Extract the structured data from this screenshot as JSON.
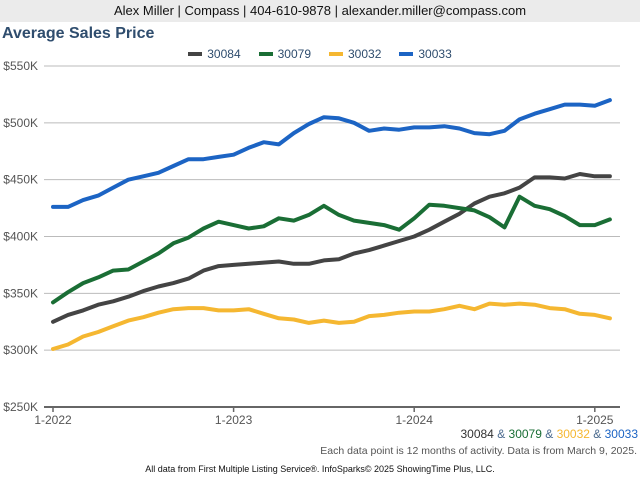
{
  "header": {
    "contact": "Alex Miller | Compass | 404-610-9878 | alexander.miller@compass.com"
  },
  "chart_data": {
    "type": "line",
    "title": "Average Sales Price",
    "xlabel": "",
    "ylabel": "",
    "ylim": [
      250000,
      550000
    ],
    "yticks": [
      250000,
      300000,
      350000,
      400000,
      450000,
      500000,
      550000
    ],
    "ytick_labels": [
      "$250K",
      "$300K",
      "$350K",
      "$400K",
      "$450K",
      "$500K",
      "$550K"
    ],
    "xtick_labels": [
      "1-2022",
      "1-2023",
      "1-2024",
      "1-2025"
    ],
    "xtick_indices": [
      0,
      12,
      24,
      36
    ],
    "grid": true,
    "legend_position": "top-center",
    "x": [
      "1-2022",
      "2-2022",
      "3-2022",
      "4-2022",
      "5-2022",
      "6-2022",
      "7-2022",
      "8-2022",
      "9-2022",
      "10-2022",
      "11-2022",
      "12-2022",
      "1-2023",
      "2-2023",
      "3-2023",
      "4-2023",
      "5-2023",
      "6-2023",
      "7-2023",
      "8-2023",
      "9-2023",
      "10-2023",
      "11-2023",
      "12-2023",
      "1-2024",
      "2-2024",
      "3-2024",
      "4-2024",
      "5-2024",
      "6-2024",
      "7-2024",
      "8-2024",
      "9-2024",
      "10-2024",
      "11-2024",
      "12-2024",
      "1-2025",
      "2-2025"
    ],
    "series": [
      {
        "name": "30084",
        "color": "#444444",
        "values": [
          325000,
          331000,
          335000,
          340000,
          343000,
          347000,
          352000,
          356000,
          359000,
          363000,
          370000,
          374000,
          375000,
          376000,
          377000,
          378000,
          376000,
          376000,
          379000,
          380000,
          385000,
          388000,
          392000,
          396000,
          400000,
          406000,
          413000,
          420000,
          429000,
          435000,
          438000,
          443000,
          452000,
          452000,
          451000,
          455000,
          453000,
          453000
        ]
      },
      {
        "name": "30079",
        "color": "#1a6e35",
        "values": [
          342000,
          351000,
          359000,
          364000,
          370000,
          371000,
          378000,
          385000,
          394000,
          399000,
          407000,
          413000,
          410000,
          407000,
          409000,
          416000,
          414000,
          419000,
          427000,
          419000,
          414000,
          412000,
          410000,
          406000,
          416000,
          428000,
          427000,
          425000,
          423000,
          417000,
          408000,
          435000,
          427000,
          424000,
          418000,
          410000,
          410000,
          415000
        ]
      },
      {
        "name": "30032",
        "color": "#f5b731",
        "values": [
          301000,
          305000,
          312000,
          316000,
          321000,
          326000,
          329000,
          333000,
          336000,
          337000,
          337000,
          335000,
          335000,
          336000,
          332000,
          328000,
          327000,
          324000,
          326000,
          324000,
          325000,
          330000,
          331000,
          333000,
          334000,
          334000,
          336000,
          339000,
          336000,
          341000,
          340000,
          341000,
          340000,
          337000,
          336000,
          332000,
          331000,
          328000
        ]
      },
      {
        "name": "30033",
        "color": "#1c64c4",
        "values": [
          426000,
          426000,
          432000,
          436000,
          443000,
          450000,
          453000,
          456000,
          462000,
          468000,
          468000,
          470000,
          472000,
          478000,
          483000,
          481000,
          491000,
          499000,
          505000,
          504000,
          500000,
          493000,
          495000,
          494000,
          496000,
          496000,
          497000,
          495000,
          491000,
          490000,
          493000,
          503000,
          508000,
          512000,
          516000,
          516000,
          515000,
          520000
        ]
      }
    ],
    "caption_parts": [
      {
        "text": "30084",
        "color": "#333333"
      },
      {
        "text": " & ",
        "color": "#4a6a8e"
      },
      {
        "text": "30079",
        "color": "#1a6e35"
      },
      {
        "text": " & ",
        "color": "#4a6a8e"
      },
      {
        "text": "30032",
        "color": "#f5b731"
      },
      {
        "text": " & ",
        "color": "#4a6a8e"
      },
      {
        "text": "30033",
        "color": "#1c64c4"
      }
    ],
    "note": "Each data point is 12 months of activity. Data is from March 9, 2025.",
    "source": "All data from First Multiple Listing Service®. InfoSparks© 2025 ShowingTime Plus, LLC."
  },
  "colors": {
    "title": "#2f4d6e",
    "grid": "#bbbbbb",
    "axis": "#666666"
  }
}
